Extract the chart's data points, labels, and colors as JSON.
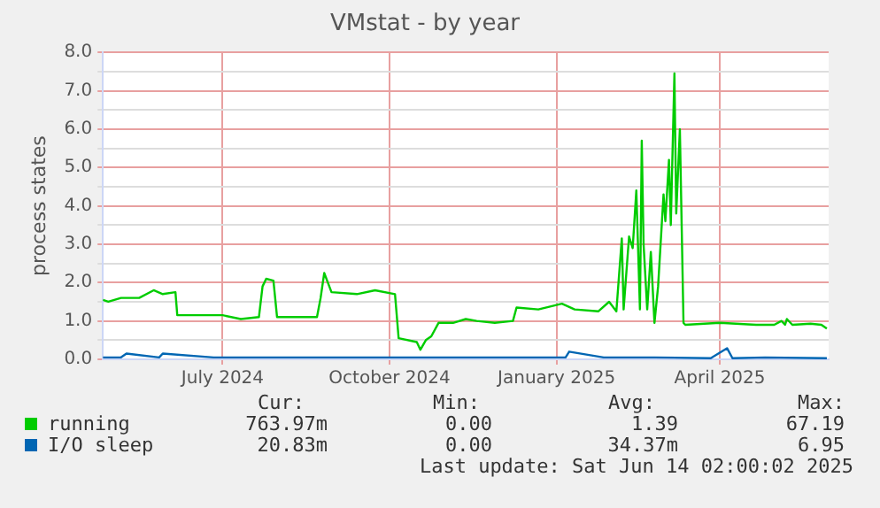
{
  "chart_data": {
    "type": "line",
    "title": "VMstat - by year",
    "ylabel": "process states",
    "xlim": [
      "2024-05-10",
      "2025-06-14"
    ],
    "xticks": [
      {
        "value": "2024-07-15",
        "label": "July 2024"
      },
      {
        "value": "2024-10-15",
        "label": "October 2024"
      },
      {
        "value": "2025-01-15",
        "label": "January 2025"
      },
      {
        "value": "2025-04-15",
        "label": "April 2025"
      }
    ],
    "ylim": [
      0,
      8
    ],
    "yticks": [
      {
        "value": 0,
        "label": "0.0"
      },
      {
        "value": 0.5,
        "label": null
      },
      {
        "value": 1,
        "label": "1.0"
      },
      {
        "value": 1.5,
        "label": null
      },
      {
        "value": 2,
        "label": "2.0"
      },
      {
        "value": 2.5,
        "label": null
      },
      {
        "value": 3,
        "label": "3.0"
      },
      {
        "value": 3.5,
        "label": null
      },
      {
        "value": 4,
        "label": "4.0"
      },
      {
        "value": 4.5,
        "label": null
      },
      {
        "value": 5,
        "label": "5.0"
      },
      {
        "value": 5.5,
        "label": null
      },
      {
        "value": 6,
        "label": "6.0"
      },
      {
        "value": 6.5,
        "label": null
      },
      {
        "value": 7,
        "label": "7.0"
      },
      {
        "value": 7.5,
        "label": null
      },
      {
        "value": 8,
        "label": "8.0"
      }
    ],
    "grid": true,
    "legend": "bottom",
    "marker": "none",
    "line_style": "solid",
    "series": [
      {
        "name": "running",
        "color": "#00cc00",
        "x": [
          "2024-05-10",
          "2024-05-13",
          "2024-05-20",
          "2024-05-30",
          "2024-06-07",
          "2024-06-12",
          "2024-06-19",
          "2024-06-20",
          "2024-07-15",
          "2024-07-25",
          "2024-08-04",
          "2024-08-06",
          "2024-08-08",
          "2024-08-12",
          "2024-08-14",
          "2024-08-24",
          "2024-09-05",
          "2024-09-07",
          "2024-09-09",
          "2024-09-13",
          "2024-09-27",
          "2024-10-07",
          "2024-10-18",
          "2024-10-20",
          "2024-10-30",
          "2024-11-01",
          "2024-11-04",
          "2024-11-07",
          "2024-11-11",
          "2024-11-19",
          "2024-11-26",
          "2024-12-02",
          "2024-12-12",
          "2024-12-22",
          "2024-12-24",
          "2025-01-05",
          "2025-01-18",
          "2025-01-25",
          "2025-02-07",
          "2025-02-13",
          "2025-02-17",
          "2025-02-20",
          "2025-02-21",
          "2025-02-24",
          "2025-02-26",
          "2025-02-28",
          "2025-03-02",
          "2025-03-03",
          "2025-03-04",
          "2025-03-06",
          "2025-03-08",
          "2025-03-10",
          "2025-03-12",
          "2025-03-15",
          "2025-03-16",
          "2025-03-18",
          "2025-03-19",
          "2025-03-21",
          "2025-03-22",
          "2025-03-24",
          "2025-03-26",
          "2025-03-27",
          "2025-04-15",
          "2025-05-05",
          "2025-05-15",
          "2025-05-19",
          "2025-05-21",
          "2025-05-22",
          "2025-05-25",
          "2025-06-04",
          "2025-06-10",
          "2025-06-13"
        ],
        "values": [
          1.55,
          1.5,
          1.6,
          1.6,
          1.8,
          1.7,
          1.75,
          1.15,
          1.15,
          1.05,
          1.1,
          1.9,
          2.1,
          2.05,
          1.1,
          1.1,
          1.1,
          1.6,
          2.25,
          1.75,
          1.7,
          1.8,
          1.7,
          0.55,
          0.45,
          0.25,
          0.5,
          0.6,
          0.95,
          0.95,
          1.05,
          1.0,
          0.95,
          1.0,
          1.35,
          1.3,
          1.45,
          1.3,
          1.25,
          1.5,
          1.25,
          3.15,
          1.3,
          3.2,
          2.9,
          4.4,
          1.3,
          5.7,
          3.0,
          1.3,
          2.8,
          0.95,
          1.9,
          4.3,
          3.6,
          5.2,
          3.5,
          7.45,
          3.8,
          6.0,
          0.95,
          0.9,
          0.95,
          0.9,
          0.9,
          1.0,
          0.9,
          1.05,
          0.9,
          0.93,
          0.9,
          0.8
        ]
      },
      {
        "name": "I/O sleep",
        "color": "#0066b3",
        "x": [
          "2024-05-10",
          "2024-05-20",
          "2024-05-23",
          "2024-06-10",
          "2024-06-12",
          "2024-07-10",
          "2024-08-10",
          "2024-09-10",
          "2024-10-10",
          "2024-11-10",
          "2024-12-10",
          "2025-01-10",
          "2025-01-20",
          "2025-01-22",
          "2025-02-10",
          "2025-03-10",
          "2025-04-10",
          "2025-04-19",
          "2025-04-22",
          "2025-05-10",
          "2025-06-13"
        ],
        "values": [
          0.05,
          0.05,
          0.15,
          0.05,
          0.15,
          0.05,
          0.05,
          0.05,
          0.05,
          0.05,
          0.05,
          0.05,
          0.05,
          0.2,
          0.05,
          0.05,
          0.03,
          0.29,
          0.03,
          0.05,
          0.03
        ]
      }
    ],
    "annotations": [
      "Cur:",
      "Min:",
      "Avg:",
      "Max:",
      "763.97m",
      "0.00",
      "1.39",
      "67.19",
      "20.83m",
      "0.00",
      "34.37m",
      "6.95",
      "Last update: Sat Jun 14 02:00:02 2025"
    ]
  }
}
